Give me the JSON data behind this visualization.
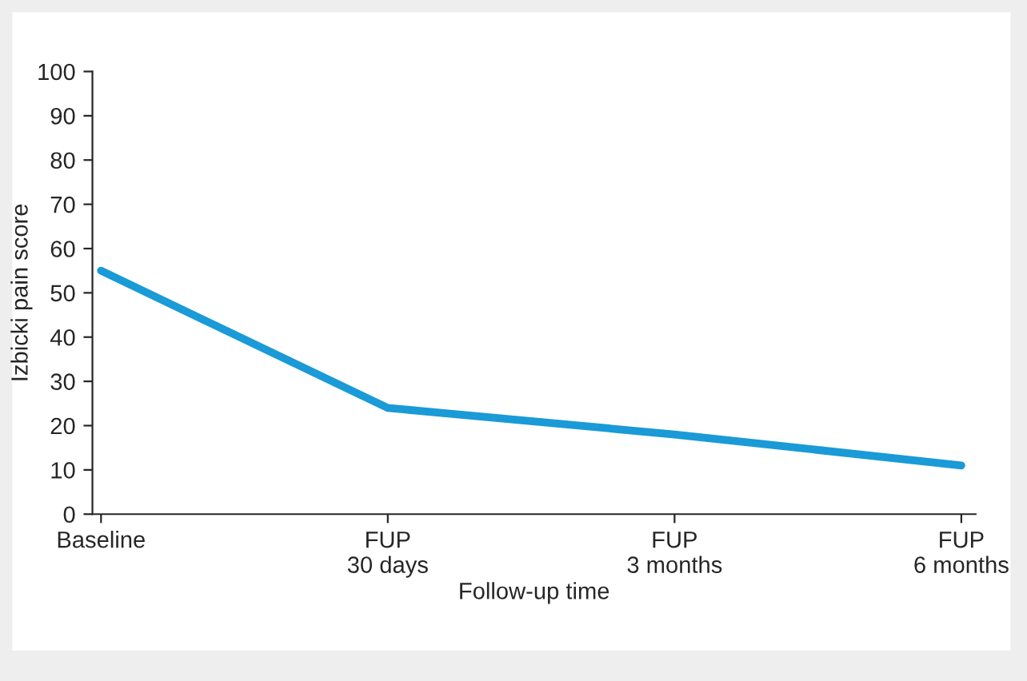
{
  "chart_data": {
    "type": "line",
    "xlabel": "Follow-up time",
    "ylabel": "Izbicki pain score",
    "categories": [
      "Baseline",
      "FUP\n30 days",
      "FUP\n3 months",
      "FUP\n6 months"
    ],
    "series": [
      {
        "color": "#1a9ad7",
        "values": [
          55,
          24,
          18,
          11
        ]
      }
    ],
    "ylim": [
      0,
      100
    ],
    "yticks": [
      0,
      10,
      20,
      30,
      40,
      50,
      60,
      70,
      80,
      90,
      100
    ],
    "grid": false,
    "legend": false,
    "marker": "none",
    "line_style": "solid"
  }
}
